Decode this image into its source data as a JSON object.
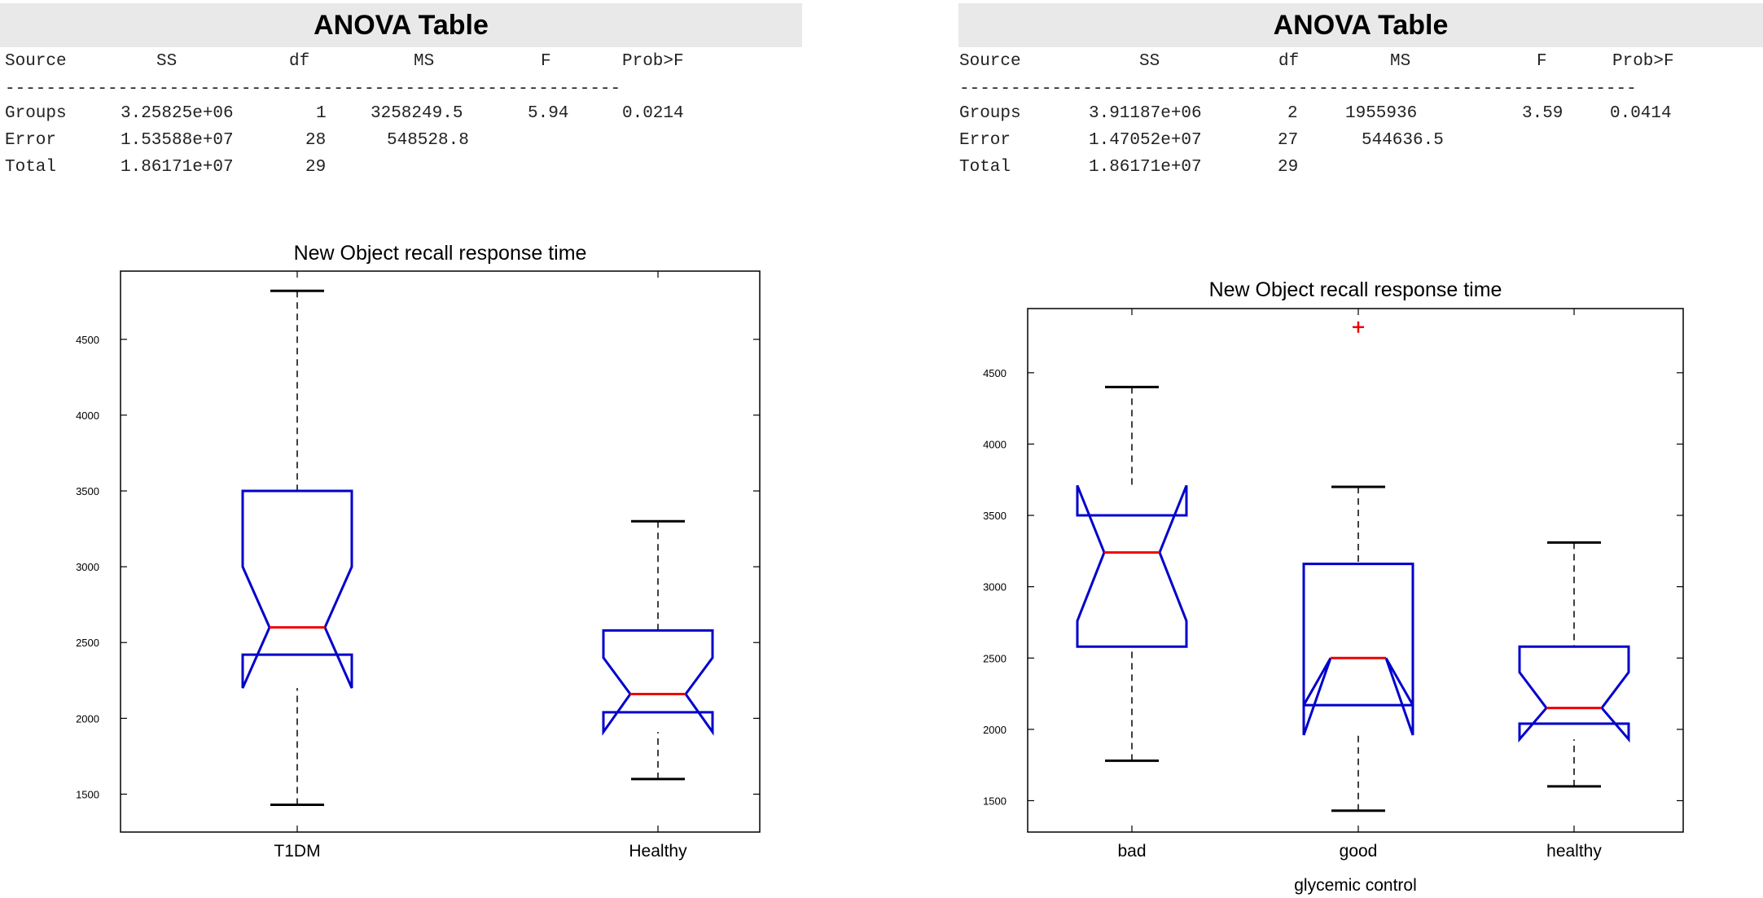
{
  "anova_tables": [
    {
      "title": "ANOVA Table",
      "headers": [
        "Source",
        "SS",
        "df",
        "MS",
        "F",
        "Prob>F"
      ],
      "rows": [
        [
          "Groups",
          "3.25825e+06",
          "1",
          "3258249.5",
          "5.94",
          "0.0214"
        ],
        [
          "Error",
          "1.53588e+07",
          "28",
          "548528.8",
          "",
          ""
        ],
        [
          "Total",
          "1.86171e+07",
          "29",
          "",
          "",
          ""
        ]
      ]
    },
    {
      "title": "ANOVA Table",
      "headers": [
        "Source",
        "SS",
        "df",
        "MS",
        "F",
        "Prob>F"
      ],
      "rows": [
        [
          "Groups",
          "3.91187e+06",
          "2",
          "1955936",
          "3.59",
          "0.0414"
        ],
        [
          "Error",
          "1.47052e+07",
          "27",
          "544636.5",
          "",
          ""
        ],
        [
          "Total",
          "1.86171e+07",
          "29",
          "",
          "",
          ""
        ]
      ]
    }
  ],
  "colors": {
    "box": "#0000cc",
    "median": "#ee0000",
    "whisker": "#000000",
    "outlier": "#ee0000",
    "title_bar": "#e9e9e9"
  },
  "chart_data": [
    {
      "type": "boxplot",
      "notched": true,
      "title": "New Object recall response time",
      "xlabel": "",
      "ylabel": "",
      "ylim": [
        1250,
        4950
      ],
      "yticks": [
        1500,
        2000,
        2500,
        3000,
        3500,
        4000,
        4500
      ],
      "categories": [
        "T1DM",
        "Healthy"
      ],
      "boxes": [
        {
          "whisker_low": 1430,
          "q1": 2420,
          "median": 2600,
          "q3": 3500,
          "whisker_high": 4820,
          "notch_low": 2200,
          "notch_high": 3000,
          "outliers": []
        },
        {
          "whisker_low": 1600,
          "q1": 2040,
          "median": 2160,
          "q3": 2580,
          "whisker_high": 3300,
          "notch_low": 1910,
          "notch_high": 2400,
          "outliers": []
        }
      ],
      "grid": false
    },
    {
      "type": "boxplot",
      "notched": true,
      "title": "New Object recall response time",
      "xlabel": "glycemic control",
      "ylabel": "",
      "ylim": [
        1280,
        4950
      ],
      "yticks": [
        1500,
        2000,
        2500,
        3000,
        3500,
        4000,
        4500
      ],
      "categories": [
        "bad",
        "good",
        "healthy"
      ],
      "boxes": [
        {
          "whisker_low": 1780,
          "q1": 2580,
          "median": 3240,
          "q3": 3500,
          "whisker_high": 4400,
          "notch_low": 2760,
          "notch_high": 3710,
          "outliers": []
        },
        {
          "whisker_low": 1430,
          "q1": 2170,
          "median": 2500,
          "q3": 3160,
          "whisker_high": 3700,
          "notch_low": 1960,
          "notch_high": 2170,
          "outliers": [
            4820
          ]
        },
        {
          "whisker_low": 1600,
          "q1": 2040,
          "median": 2150,
          "q3": 2580,
          "whisker_high": 3310,
          "notch_low": 1930,
          "notch_high": 2400,
          "outliers": []
        }
      ],
      "grid": false
    }
  ]
}
